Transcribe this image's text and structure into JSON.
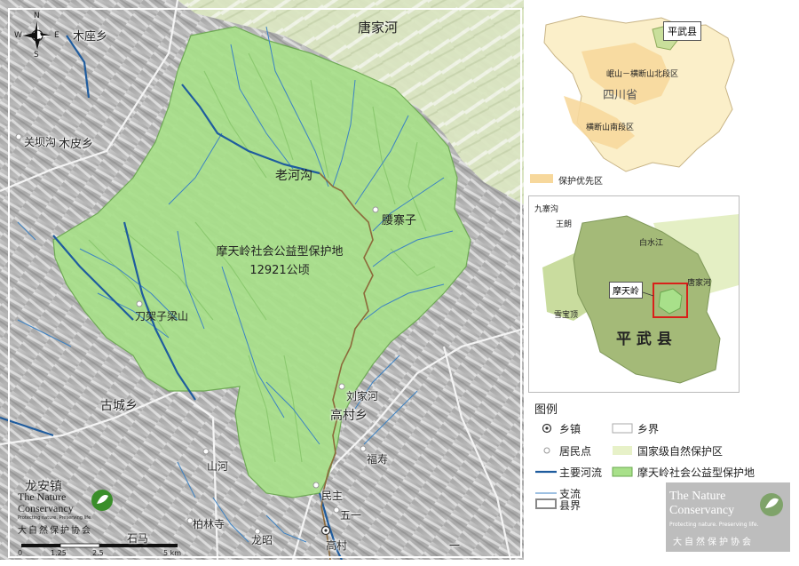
{
  "main_map": {
    "reserve_name": "摩天岭社会公益型保护地",
    "reserve_area": "12921公顷",
    "labels": {
      "mu_zuo": "木座乡",
      "tang_jia_he": "唐家河",
      "guan_ba_gou": "关坝沟",
      "mu_pi": "木皮乡",
      "lao_he_gou": "老河沟",
      "yao_zhai_zi": "腰寨子",
      "dao_jia_zi": "刀架子梁山",
      "gu_cheng": "古城乡",
      "liu_jia_he": "刘家河",
      "gao_cun_xiang": "高村乡",
      "fu_shou": "福寿",
      "shan_he": "山河",
      "long_an": "龙安镇",
      "min_zhu": "民主",
      "wu_yi": "五一",
      "bai_lin_si": "柏林寺",
      "shi_ma": "石马",
      "long_zhao": "龙昭",
      "gao_cun": "高村",
      "yi_yi": "一"
    },
    "compass": {
      "n": "N",
      "s": "S",
      "e": "E",
      "w": "W"
    },
    "scale": {
      "ticks": [
        "0",
        "1.25",
        "2.5",
        "5 km"
      ]
    }
  },
  "tnc_logo": {
    "line1": "The Nature",
    "line2": "Conservancy",
    "tagline": "Protecting nature. Preserving life.",
    "tm": "®",
    "chinese": "大自然保护协会"
  },
  "inset_sichuan": {
    "pingwu": "平武县",
    "minshan": "岷山－横断山北段区",
    "province": "四川省",
    "hengduan_south": "横断山南段区",
    "priority_legend": "保护优先区"
  },
  "inset_county": {
    "jiuzhai": "九寨沟",
    "wanglang": "王朗",
    "baishui": "白水江",
    "tangjia": "唐家河",
    "motian": "摩天岭",
    "xuebao": "雪宝顶",
    "county": "平 武 县"
  },
  "legend": {
    "title": "图例",
    "items": [
      {
        "label": "乡镇"
      },
      {
        "label": "居民点"
      },
      {
        "label": "主要河流"
      },
      {
        "label": "支流"
      },
      {
        "label": "县界"
      },
      {
        "label": "乡界"
      },
      {
        "label": "国家级自然保护区"
      },
      {
        "label": "摩天岭社会公益型保护地"
      }
    ]
  },
  "colors": {
    "reserve_fill": "#a8e08a",
    "national_reserve": "#e7f1c8",
    "main_river": "#1f5c9e",
    "tributary": "#3b82c4",
    "priority_zone": "#f7d89c",
    "terrain": "#b9b9b9",
    "highlight_box": "#d9201a"
  }
}
